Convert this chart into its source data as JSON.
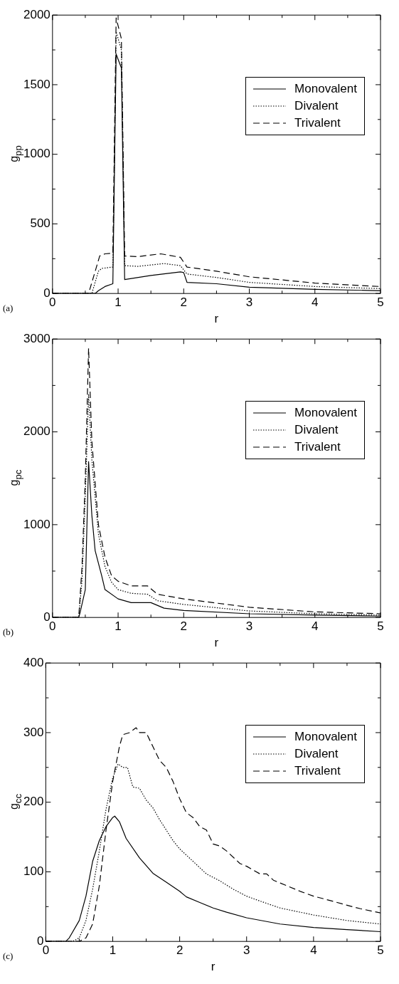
{
  "chart_data": [
    {
      "type": "line",
      "xlabel": "r",
      "ylabel": "g$_{pp}$",
      "annotations": [
        "(a)"
      ],
      "legend": "top right",
      "grid": false,
      "xlim": [
        0,
        5
      ],
      "ylim": [
        0,
        2000
      ],
      "xticks": [
        0,
        {
          "value": 0.5,
          "label": null
        },
        1,
        {
          "value": 1.5,
          "label": null
        },
        2,
        {
          "value": 2.5,
          "label": null
        },
        3,
        {
          "value": 3.5,
          "label": null
        },
        4,
        {
          "value": 4.5,
          "label": null
        },
        5
      ],
      "yticks": [
        0,
        {
          "value": 250,
          "label": null
        },
        500,
        {
          "value": 750,
          "label": null
        },
        1000,
        {
          "value": 1250,
          "label": null
        },
        1500,
        {
          "value": 1750,
          "label": null
        },
        2000
      ],
      "series": [
        {
          "name": "Monovalent",
          "color": "#000000",
          "line_style": "solid",
          "x": [
            0,
            0.65,
            0.7,
            0.8,
            0.92,
            0.97,
            1.05,
            1.1,
            1.5,
            1.95,
            2.0,
            2.05,
            2.5,
            3,
            4,
            5
          ],
          "values": [
            0,
            0,
            20,
            50,
            70,
            1720,
            1620,
            100,
            130,
            155,
            150,
            80,
            70,
            45,
            30,
            20
          ]
        },
        {
          "name": "Divalent",
          "color": "#000000",
          "line_style": "dotted",
          "x": [
            0,
            0.6,
            0.7,
            0.75,
            0.92,
            0.97,
            1.05,
            1.1,
            1.3,
            1.7,
            1.95,
            2.05,
            2.5,
            3,
            4,
            5
          ],
          "values": [
            0,
            0,
            160,
            180,
            190,
            1880,
            1750,
            200,
            195,
            215,
            200,
            140,
            115,
            80,
            50,
            35
          ]
        },
        {
          "name": "Trivalent",
          "color": "#000000",
          "line_style": "dashed",
          "x": [
            0,
            0.55,
            0.72,
            0.8,
            0.92,
            0.97,
            1.05,
            1.1,
            1.3,
            1.65,
            1.95,
            2.05,
            2.5,
            3,
            4,
            5
          ],
          "values": [
            0,
            0,
            270,
            285,
            290,
            1980,
            1830,
            270,
            265,
            285,
            260,
            190,
            160,
            120,
            75,
            50
          ]
        }
      ]
    },
    {
      "type": "line",
      "xlabel": "r",
      "ylabel": "g$_{pc}$",
      "annotations": [
        "(b)"
      ],
      "legend": "top right",
      "grid": false,
      "xlim": [
        0,
        5
      ],
      "ylim": [
        0,
        3000
      ],
      "xticks": [
        0,
        {
          "value": 0.5,
          "label": null
        },
        1,
        {
          "value": 1.5,
          "label": null
        },
        2,
        {
          "value": 2.5,
          "label": null
        },
        3,
        {
          "value": 3.5,
          "label": null
        },
        4,
        {
          "value": 4.5,
          "label": null
        },
        5
      ],
      "yticks": [
        0,
        {
          "value": 500,
          "label": null
        },
        1000,
        {
          "value": 1500,
          "label": null
        },
        2000,
        {
          "value": 2500,
          "label": null
        },
        3000
      ],
      "series": [
        {
          "name": "Monovalent",
          "color": "#000000",
          "line_style": "solid",
          "x": [
            0,
            0.4,
            0.42,
            0.5,
            0.55,
            0.6,
            0.65,
            0.75,
            0.8,
            1.0,
            1.2,
            1.5,
            1.7,
            2,
            3,
            4,
            5
          ],
          "values": [
            0,
            0,
            50,
            300,
            1680,
            1100,
            720,
            450,
            300,
            200,
            160,
            160,
            100,
            75,
            40,
            25,
            15
          ]
        },
        {
          "name": "Divalent",
          "color": "#000000",
          "line_style": "dotted",
          "x": [
            0,
            0.4,
            0.45,
            0.5,
            0.55,
            0.6,
            0.7,
            0.8,
            0.9,
            1.0,
            1.2,
            1.45,
            1.6,
            2,
            3,
            4,
            5
          ],
          "values": [
            0,
            0,
            400,
            1300,
            2400,
            1700,
            900,
            550,
            380,
            300,
            260,
            250,
            180,
            140,
            70,
            40,
            25
          ]
        },
        {
          "name": "Trivalent",
          "color": "#000000",
          "line_style": "dashed",
          "x": [
            0,
            0.4,
            0.45,
            0.5,
            0.55,
            0.6,
            0.7,
            0.8,
            0.9,
            1.0,
            1.2,
            1.45,
            1.6,
            2,
            3,
            4,
            5
          ],
          "values": [
            0,
            0,
            550,
            1500,
            2900,
            1900,
            1000,
            650,
            450,
            390,
            340,
            340,
            250,
            200,
            110,
            60,
            40
          ]
        }
      ]
    },
    {
      "type": "line",
      "xlabel": "r",
      "ylabel": "g$_{cc}$",
      "annotations": [
        "(c)"
      ],
      "legend": "top right",
      "grid": false,
      "xlim": [
        0,
        5
      ],
      "ylim": [
        0,
        400
      ],
      "xticks": [
        0,
        {
          "value": 0.5,
          "label": null
        },
        1,
        {
          "value": 1.5,
          "label": null
        },
        2,
        {
          "value": 2.5,
          "label": null
        },
        3,
        {
          "value": 3.5,
          "label": null
        },
        4,
        {
          "value": 4.5,
          "label": null
        },
        5
      ],
      "yticks": [
        0,
        {
          "value": 50,
          "label": null
        },
        100,
        {
          "value": 150,
          "label": null
        },
        200,
        {
          "value": 250,
          "label": null
        },
        300,
        {
          "value": 350,
          "label": null
        },
        400
      ],
      "series": [
        {
          "name": "Monovalent",
          "color": "#000000",
          "line_style": "solid",
          "x": [
            0,
            0.3,
            0.35,
            0.5,
            0.6,
            0.7,
            0.8,
            0.9,
            1.0,
            1.03,
            1.1,
            1.2,
            1.4,
            1.6,
            1.8,
            2,
            2.1,
            2.3,
            2.5,
            2.7,
            3,
            3.5,
            4,
            4.5,
            5
          ],
          "values": [
            0,
            0,
            5,
            30,
            65,
            115,
            145,
            165,
            178,
            180,
            172,
            148,
            120,
            98,
            85,
            72,
            64,
            56,
            48,
            42,
            34,
            25,
            20,
            17,
            14
          ]
        },
        {
          "name": "Divalent",
          "color": "#000000",
          "line_style": "dotted",
          "x": [
            0,
            0.4,
            0.5,
            0.6,
            0.7,
            0.8,
            0.9,
            1.0,
            1.08,
            1.15,
            1.22,
            1.3,
            1.4,
            1.5,
            1.6,
            1.7,
            1.8,
            1.9,
            2.0,
            2.2,
            2.4,
            2.6,
            2.8,
            3.0,
            3.2,
            3.5,
            4,
            4.5,
            5
          ],
          "values": [
            0,
            0,
            5,
            30,
            75,
            130,
            190,
            235,
            255,
            250,
            250,
            222,
            220,
            203,
            192,
            175,
            160,
            145,
            133,
            115,
            97,
            87,
            75,
            65,
            58,
            48,
            38,
            30,
            25
          ]
        },
        {
          "name": "Trivalent",
          "color": "#000000",
          "line_style": "dashed",
          "x": [
            0,
            0.5,
            0.6,
            0.7,
            0.8,
            0.9,
            1.0,
            1.1,
            1.15,
            1.25,
            1.35,
            1.4,
            1.5,
            1.6,
            1.7,
            1.8,
            1.9,
            2.0,
            2.1,
            2.2,
            2.3,
            2.4,
            2.5,
            2.6,
            2.7,
            2.9,
            3.0,
            3.2,
            3.3,
            3.4,
            3.6,
            3.8,
            4,
            4.2,
            4.5,
            4.7,
            5
          ],
          "values": [
            0,
            0,
            5,
            25,
            80,
            160,
            230,
            280,
            297,
            300,
            307,
            300,
            300,
            280,
            260,
            250,
            230,
            205,
            185,
            178,
            165,
            160,
            140,
            137,
            130,
            112,
            108,
            97,
            97,
            88,
            80,
            72,
            65,
            60,
            52,
            47,
            41
          ]
        }
      ]
    }
  ]
}
